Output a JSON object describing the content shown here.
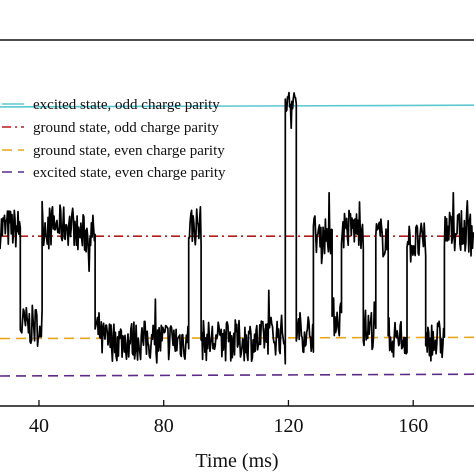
{
  "chart_data": {
    "type": "line",
    "xlabel": "Time (ms)",
    "ylabel": "",
    "xlim": [
      27.5,
      179.5
    ],
    "ylim": [
      0,
      1
    ],
    "x_ticks": [
      40,
      80,
      120,
      160
    ],
    "x_tick_labels": [
      "40",
      "80",
      "120",
      "160"
    ],
    "grid": false,
    "legend_position": "top-left",
    "reference_lines": [
      {
        "name": "excited state, odd charge parity",
        "y": 0.912,
        "y_end": 0.918,
        "color": "#5bc8d0",
        "dash": "solid"
      },
      {
        "name": "ground state, odd charge parity",
        "y": 0.474,
        "y_end": 0.474,
        "color": "#b51c1c",
        "dash": "dashdot"
      },
      {
        "name": "ground state, even charge parity",
        "y": 0.127,
        "y_end": 0.131,
        "color": "#e8a514",
        "dash": "dashed"
      },
      {
        "name": "excited state, even charge parity",
        "y": 0.0,
        "y_end": 0.006,
        "color": "#5c2a8a",
        "dash": "dashed"
      }
    ],
    "signal": {
      "color": "#000000",
      "segments": [
        [
          27.5,
          34,
          0.5
        ],
        [
          34,
          41,
          0.17
        ],
        [
          41,
          52,
          0.51
        ],
        [
          52,
          58,
          0.48
        ],
        [
          58,
          60,
          0.15
        ],
        [
          60,
          88,
          0.12
        ],
        [
          88,
          92,
          0.51
        ],
        [
          92,
          112,
          0.12
        ],
        [
          112,
          119,
          0.14
        ],
        [
          119,
          122.5,
          0.93
        ],
        [
          122.5,
          128,
          0.15
        ],
        [
          128,
          134,
          0.48
        ],
        [
          134,
          137,
          0.2
        ],
        [
          137,
          144,
          0.5
        ],
        [
          144,
          148,
          0.16
        ],
        [
          148,
          152,
          0.47
        ],
        [
          152,
          158,
          0.13
        ],
        [
          158,
          164,
          0.45
        ],
        [
          164,
          170,
          0.12
        ],
        [
          170,
          179.5,
          0.49
        ]
      ]
    }
  }
}
